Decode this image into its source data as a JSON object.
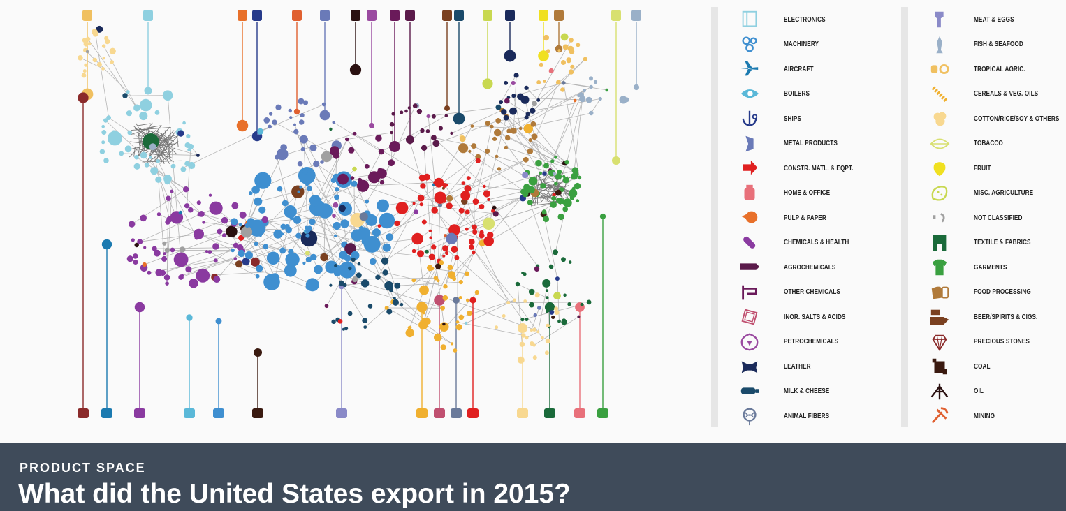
{
  "header": {
    "kicker": "PRODUCT SPACE",
    "title": "What did the United States export in 2015?"
  },
  "legend": {
    "left": [
      {
        "label": "ELECTRONICS",
        "color": "#8fd0e0",
        "icon": "electronics-icon"
      },
      {
        "label": "MACHINERY",
        "color": "#3f8fd0",
        "icon": "machinery-icon"
      },
      {
        "label": "AIRCRAFT",
        "color": "#1b7ab0",
        "icon": "aircraft-icon"
      },
      {
        "label": "BOILERS",
        "color": "#5ab8d8",
        "icon": "boilers-icon"
      },
      {
        "label": "SHIPS",
        "color": "#263a8a",
        "icon": "ships-icon"
      },
      {
        "label": "METAL PRODUCTS",
        "color": "#6a7ab8",
        "icon": "metal-products-icon"
      },
      {
        "label": "CONSTR. MATL. & EQPT.",
        "color": "#e02020",
        "icon": "construction-icon"
      },
      {
        "label": "HOME & OFFICE",
        "color": "#e8707a",
        "icon": "home-office-icon"
      },
      {
        "label": "PULP & PAPER",
        "color": "#e8702a",
        "icon": "pulp-paper-icon"
      },
      {
        "label": "CHEMICALS & HEALTH",
        "color": "#8a3aa0",
        "icon": "chemicals-health-icon"
      },
      {
        "label": "AGROCHEMICALS",
        "color": "#5a1a4a",
        "icon": "agrochemicals-icon"
      },
      {
        "label": "OTHER CHEMICALS",
        "color": "#6a1a5a",
        "icon": "other-chemicals-icon"
      },
      {
        "label": "INOR. SALTS & ACIDS",
        "color": "#c05070",
        "icon": "inorganic-salts-icon"
      },
      {
        "label": "PETROCHEMICALS",
        "color": "#9a4aa0",
        "icon": "petrochemicals-icon"
      },
      {
        "label": "LEATHER",
        "color": "#1a2a5a",
        "icon": "leather-icon"
      },
      {
        "label": "MILK & CHEESE",
        "color": "#1a4a6a",
        "icon": "milk-cheese-icon"
      },
      {
        "label": "ANIMAL FIBERS",
        "color": "#6a7a9a",
        "icon": "animal-fibers-icon"
      }
    ],
    "right": [
      {
        "label": "MEAT & EGGS",
        "color": "#8a8ac8",
        "icon": "meat-eggs-icon"
      },
      {
        "label": "FISH & SEAFOOD",
        "color": "#9ab0c8",
        "icon": "fish-seafood-icon"
      },
      {
        "label": "TROPICAL AGRIC.",
        "color": "#f0c060",
        "icon": "tropical-agric-icon"
      },
      {
        "label": "CEREALS & VEG. OILS",
        "color": "#f0b030",
        "icon": "cereals-icon"
      },
      {
        "label": "COTTON/RICE/SOY & OTHERS",
        "color": "#f8d890",
        "icon": "cotton-rice-icon"
      },
      {
        "label": "TOBACCO",
        "color": "#d8e070",
        "icon": "tobacco-icon"
      },
      {
        "label": "FRUIT",
        "color": "#f0e020",
        "icon": "fruit-icon"
      },
      {
        "label": "MISC. AGRICULTURE",
        "color": "#c8d850",
        "icon": "misc-agriculture-icon"
      },
      {
        "label": "NOT CLASSIFIED",
        "color": "#a0a0a0",
        "icon": "not-classified-icon"
      },
      {
        "label": "TEXTILE & FABRICS",
        "color": "#1a6a3a",
        "icon": "textile-icon"
      },
      {
        "label": "GARMENTS",
        "color": "#3aa040",
        "icon": "garments-icon"
      },
      {
        "label": "FOOD PROCESSING",
        "color": "#b07a3a",
        "icon": "food-processing-icon"
      },
      {
        "label": "BEER/SPIRITS & CIGS.",
        "color": "#7a4020",
        "icon": "beer-spirits-icon"
      },
      {
        "label": "PRECIOUS STONES",
        "color": "#8a2a2a",
        "icon": "precious-stones-icon"
      },
      {
        "label": "COAL",
        "color": "#3a1a10",
        "icon": "coal-icon"
      },
      {
        "label": "OIL",
        "color": "#2a1010",
        "icon": "oil-icon"
      },
      {
        "label": "MINING",
        "color": "#e06030",
        "icon": "mining-icon"
      }
    ]
  }
}
